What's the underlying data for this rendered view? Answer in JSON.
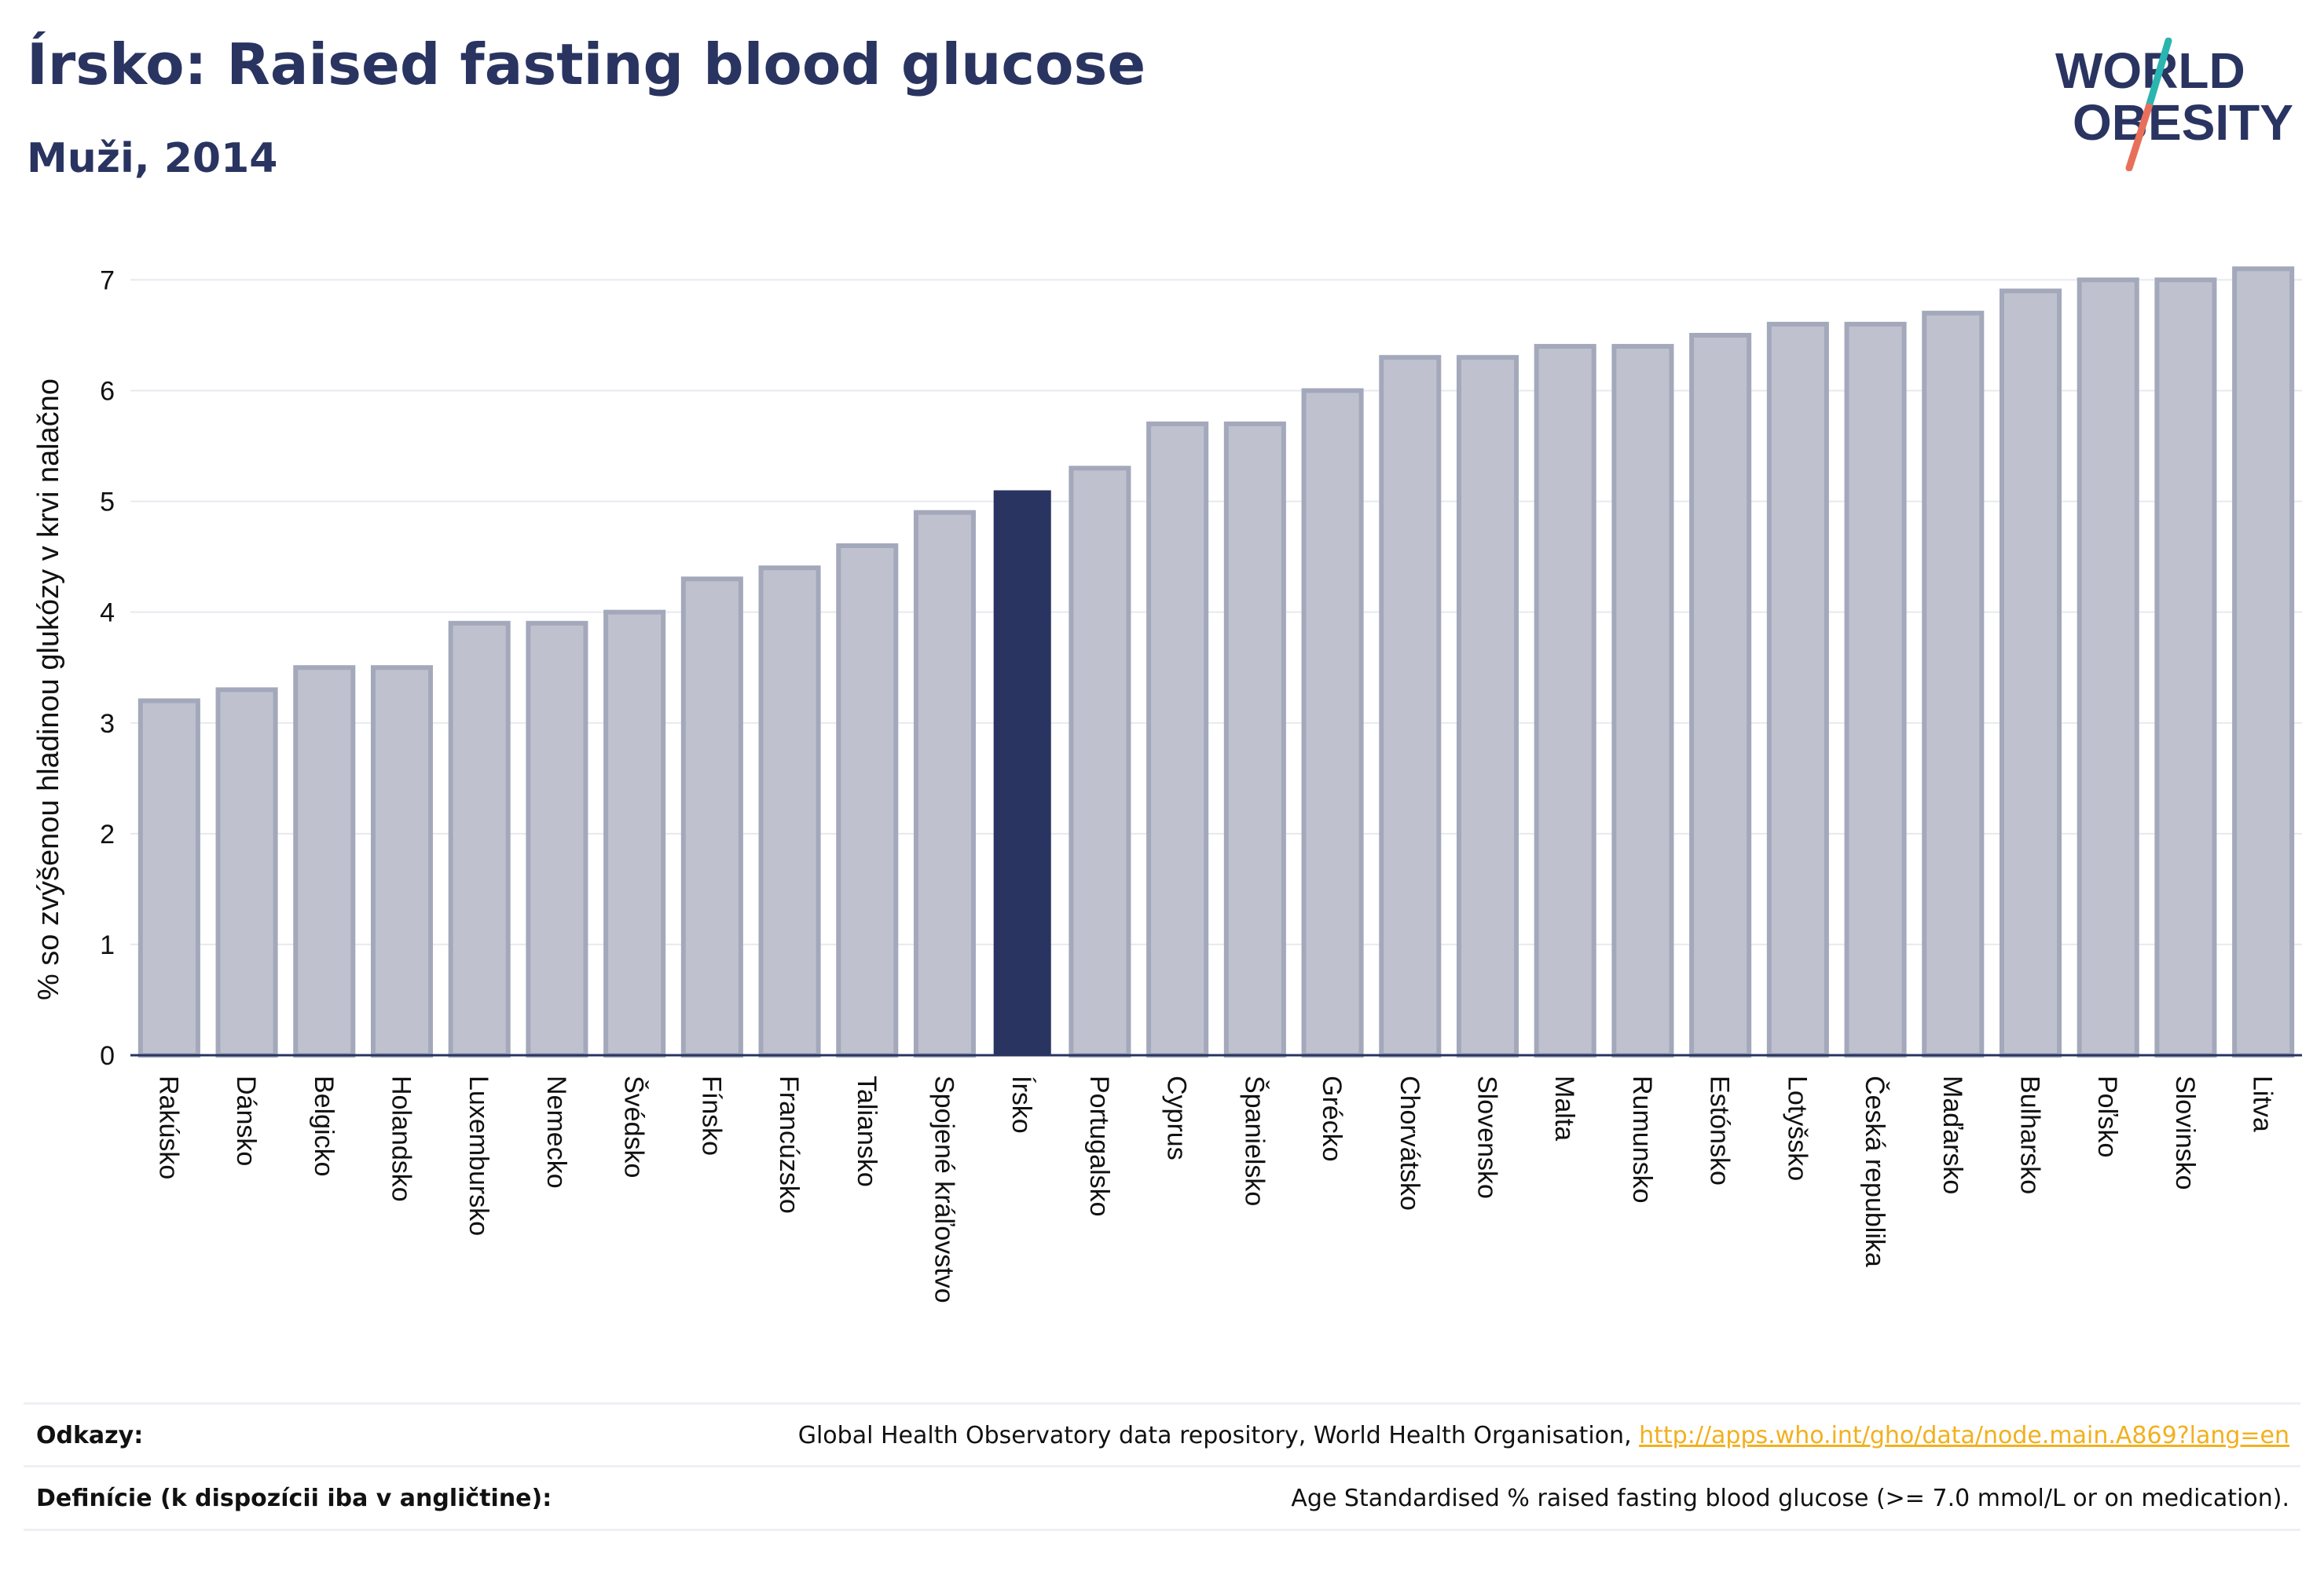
{
  "header": {
    "title": "Írsko: Raised fasting blood glucose",
    "subtitle": "Muži, 2014"
  },
  "logo": {
    "line1": "WORLD",
    "line2": "OBESITY",
    "colors": {
      "text": "#2a3461",
      "slash_top": "#2ab5b0",
      "slash_bottom": "#e8705a"
    }
  },
  "chart_data": {
    "type": "bar",
    "title": "",
    "ylabel": "% so zvýšenou hladinou glukózy v krvi nalačno",
    "xlabel": "",
    "ylim": [
      0,
      7.4
    ],
    "yticks": [
      0,
      1,
      2,
      3,
      4,
      5,
      6,
      7
    ],
    "grid": true,
    "highlight": "Írsko",
    "colors": {
      "bar": "#bfc2ce",
      "bar_edge": "#a3a8bb",
      "highlight": "#2a3461",
      "grid": "#e8e9ef",
      "axis": "#2a3461"
    },
    "categories": [
      "Rakúsko",
      "Dánsko",
      "Belgicko",
      "Holandsko",
      "Luxembursko",
      "Nemecko",
      "Švédsko",
      "Fínsko",
      "Francúzsko",
      "Taliansko",
      "Spojené kráľovstvo",
      "Írsko",
      "Portugalsko",
      "Cyprus",
      "Španielsko",
      "Grécko",
      "Chorvátsko",
      "Slovensko",
      "Malta",
      "Rumunsko",
      "Estónsko",
      "Lotyšsko",
      "Česká republika",
      "Maďarsko",
      "Bulharsko",
      "Poľsko",
      "Slovinsko",
      "Litva"
    ],
    "values": [
      3.2,
      3.3,
      3.5,
      3.5,
      3.9,
      3.9,
      4.0,
      4.3,
      4.4,
      4.6,
      4.9,
      5.1,
      5.3,
      5.7,
      5.7,
      6.0,
      6.3,
      6.3,
      6.4,
      6.4,
      6.5,
      6.6,
      6.6,
      6.7,
      6.9,
      7.0,
      7.0,
      7.1
    ]
  },
  "footer": {
    "references_label": "Odkazy:",
    "references_text": "Global Health Observatory data repository, World Health Organisation, ",
    "references_link": "http://apps.who.int/gho/data/node.main.A869?lang=en",
    "definitions_label": "Definície (k dispozícii iba v angličtine):",
    "definitions_text": "Age Standardised % raised fasting blood glucose (>= 7.0 mmol/L or on medication)."
  }
}
